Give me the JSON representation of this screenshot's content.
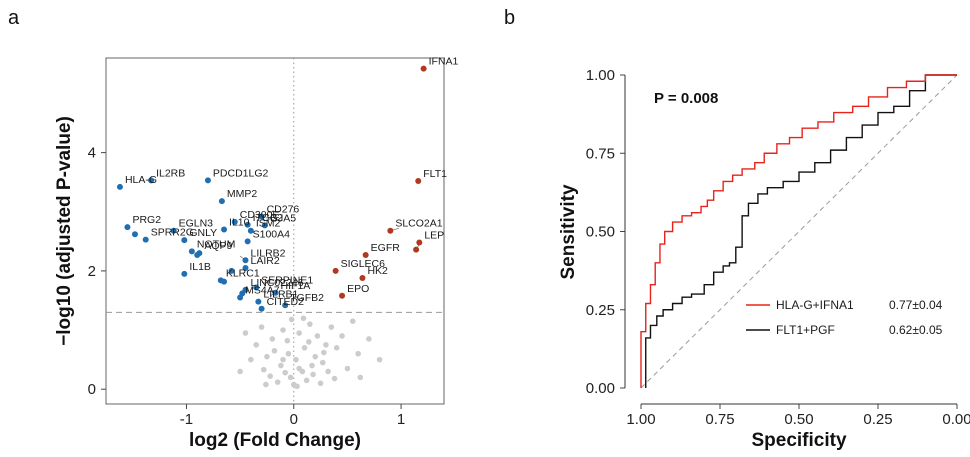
{
  "panels": {
    "a": "a",
    "b": "b"
  },
  "chart_data": [
    {
      "type": "scatter",
      "title": "",
      "xlabel": "log2 (Fold Change)",
      "ylabel": "−log10 (adjusted P-value)",
      "xlim": [
        -1.75,
        1.4
      ],
      "ylim": [
        -0.25,
        5.6
      ],
      "xticks": [
        -1,
        0,
        1
      ],
      "yticks": [
        0,
        2,
        4
      ],
      "threshold_y": 1.3,
      "colors": {
        "down": "#1f6fb2",
        "up": "#b0391f",
        "ns": "#cccccc"
      },
      "points": [
        {
          "x": 1.21,
          "y": 5.42,
          "label": "IFNA1",
          "group": "up"
        },
        {
          "x": 1.16,
          "y": 3.52,
          "label": "FLT1",
          "group": "up"
        },
        {
          "x": 0.9,
          "y": 2.68,
          "label": "SLCO2A1",
          "group": "up"
        },
        {
          "x": 1.17,
          "y": 2.48,
          "label": "LEP",
          "group": "up"
        },
        {
          "x": 0.67,
          "y": 2.27,
          "label": "EGFR",
          "group": "up"
        },
        {
          "x": 0.39,
          "y": 2.0,
          "label": "SIGLEC6",
          "group": "up"
        },
        {
          "x": 0.64,
          "y": 1.88,
          "label": "HK2",
          "group": "up"
        },
        {
          "x": 0.45,
          "y": 1.58,
          "label": "EPO",
          "group": "up"
        },
        {
          "x": 1.14,
          "y": 2.36,
          "label": "",
          "group": "up"
        },
        {
          "x": -1.62,
          "y": 3.42,
          "label": "HLA-G",
          "group": "down"
        },
        {
          "x": -1.33,
          "y": 3.53,
          "label": "IL2RB",
          "group": "down"
        },
        {
          "x": -0.8,
          "y": 3.53,
          "label": "PDCD1LG2",
          "group": "down"
        },
        {
          "x": -0.67,
          "y": 3.18,
          "label": "MMP2",
          "group": "down"
        },
        {
          "x": -0.3,
          "y": 2.92,
          "label": "CD276",
          "group": "down"
        },
        {
          "x": -0.27,
          "y": 2.77,
          "label": "GJA5",
          "group": "down"
        },
        {
          "x": -0.43,
          "y": 2.78,
          "label": "ITGB2",
          "group": "down"
        },
        {
          "x": -0.55,
          "y": 2.83,
          "label": "CD300E",
          "group": "down"
        },
        {
          "x": -0.65,
          "y": 2.7,
          "label": "IL10",
          "group": "down"
        },
        {
          "x": -0.4,
          "y": 2.68,
          "label": "ISM2",
          "group": "down"
        },
        {
          "x": -1.55,
          "y": 2.74,
          "label": "PRG2",
          "group": "down"
        },
        {
          "x": -1.48,
          "y": 2.62,
          "label": "",
          "group": "down"
        },
        {
          "x": -1.12,
          "y": 2.68,
          "label": "EGLN3",
          "group": "down"
        },
        {
          "x": -1.38,
          "y": 2.53,
          "label": "SPRR2G",
          "group": "down"
        },
        {
          "x": -1.02,
          "y": 2.52,
          "label": "GNLY",
          "group": "down"
        },
        {
          "x": -0.43,
          "y": 2.5,
          "label": "S100A4",
          "group": "down"
        },
        {
          "x": -0.95,
          "y": 2.33,
          "label": "NOTUM",
          "group": "down"
        },
        {
          "x": -0.88,
          "y": 2.3,
          "label": "AQP9",
          "group": "down"
        },
        {
          "x": -0.9,
          "y": 2.27,
          "label": "",
          "group": "down"
        },
        {
          "x": -0.45,
          "y": 2.18,
          "label": "LILRB2",
          "group": "down"
        },
        {
          "x": -0.45,
          "y": 2.05,
          "label": "LAIR2",
          "group": "down"
        },
        {
          "x": -0.58,
          "y": 2.0,
          "label": "",
          "group": "down"
        },
        {
          "x": -1.02,
          "y": 1.95,
          "label": "IL1B",
          "group": "down"
        },
        {
          "x": -0.68,
          "y": 1.84,
          "label": "KLRC1",
          "group": "down"
        },
        {
          "x": -0.65,
          "y": 1.82,
          "label": "",
          "group": "down"
        },
        {
          "x": -0.35,
          "y": 1.72,
          "label": "SERPINE1",
          "group": "down"
        },
        {
          "x": -0.45,
          "y": 1.68,
          "label": "LINC02246",
          "group": "down"
        },
        {
          "x": -0.48,
          "y": 1.62,
          "label": "",
          "group": "down"
        },
        {
          "x": -0.5,
          "y": 1.55,
          "label": "MS4A7",
          "group": "down"
        },
        {
          "x": -0.17,
          "y": 1.63,
          "label": "HIF1A",
          "group": "down"
        },
        {
          "x": -0.33,
          "y": 1.48,
          "label": "LILRB1",
          "group": "down"
        },
        {
          "x": -0.3,
          "y": 1.36,
          "label": "CITED2",
          "group": "down"
        },
        {
          "x": -0.08,
          "y": 1.42,
          "label": "TGFB2",
          "group": "down"
        }
      ],
      "ns_points": [
        [
          0.05,
          0.95
        ],
        [
          0.15,
          1.1
        ],
        [
          0.22,
          0.9
        ],
        [
          0.3,
          0.75
        ],
        [
          0.1,
          0.7
        ],
        [
          -0.1,
          1.0
        ],
        [
          -0.2,
          0.85
        ],
        [
          -0.05,
          0.6
        ],
        [
          0.02,
          0.5
        ],
        [
          -0.12,
          0.4
        ],
        [
          0.08,
          0.3
        ],
        [
          -0.03,
          0.2
        ],
        [
          0.18,
          0.25
        ],
        [
          -0.25,
          0.55
        ],
        [
          0.27,
          0.45
        ],
        [
          0.35,
          1.05
        ],
        [
          0.4,
          0.7
        ],
        [
          0.45,
          0.9
        ],
        [
          0.55,
          1.15
        ],
        [
          0.6,
          0.6
        ],
        [
          -0.3,
          1.05
        ],
        [
          -0.35,
          0.75
        ],
        [
          -0.4,
          0.5
        ],
        [
          0.12,
          0.15
        ],
        [
          -0.15,
          0.12
        ],
        [
          0.0,
          0.08
        ],
        [
          0.05,
          0.35
        ],
        [
          -0.08,
          0.28
        ],
        [
          0.25,
          0.1
        ],
        [
          -0.22,
          0.22
        ],
        [
          0.32,
          0.3
        ],
        [
          -0.45,
          0.95
        ],
        [
          0.2,
          0.55
        ],
        [
          0.7,
          0.85
        ],
        [
          0.5,
          0.35
        ],
        [
          -0.18,
          0.65
        ],
        [
          0.38,
          0.18
        ],
        [
          -0.28,
          0.33
        ],
        [
          0.14,
          0.8
        ],
        [
          -0.06,
          0.82
        ],
        [
          0.09,
          1.2
        ],
        [
          -0.02,
          1.18
        ],
        [
          0.28,
          0.62
        ],
        [
          0.62,
          0.2
        ],
        [
          -0.5,
          0.3
        ],
        [
          0.8,
          0.5
        ],
        [
          0.03,
          0.05
        ],
        [
          -0.1,
          0.5
        ],
        [
          0.17,
          0.4
        ],
        [
          -0.26,
          0.08
        ]
      ],
      "leaders": [
        [
          0.9,
          2.68,
          0.98,
          2.72
        ],
        [
          1.14,
          2.36,
          1.18,
          2.48
        ],
        [
          -0.45,
          2.18,
          -0.5,
          2.25
        ],
        [
          -0.17,
          1.63,
          -0.22,
          1.58
        ]
      ]
    },
    {
      "type": "line",
      "title": "",
      "xlabel": "Specificity",
      "ylabel": "Sensitivity",
      "xlim": [
        1.0,
        0.0
      ],
      "ylim": [
        0.0,
        1.0
      ],
      "xticks": [
        "1.00",
        "0.75",
        "0.50",
        "0.25",
        "0.00"
      ],
      "yticks": [
        "0.00",
        "0.25",
        "0.50",
        "0.75",
        "1.00"
      ],
      "annotation": "P = 0.008",
      "series": [
        {
          "name": "HLA-G+IFNA1",
          "auc": "0.77±0.04",
          "color": "#e8231c",
          "points": [
            [
              1.0,
              0.0
            ],
            [
              1.0,
              0.18
            ],
            [
              0.985,
              0.18
            ],
            [
              0.985,
              0.27
            ],
            [
              0.97,
              0.27
            ],
            [
              0.97,
              0.33
            ],
            [
              0.955,
              0.33
            ],
            [
              0.955,
              0.4
            ],
            [
              0.94,
              0.4
            ],
            [
              0.94,
              0.46
            ],
            [
              0.925,
              0.46
            ],
            [
              0.925,
              0.5
            ],
            [
              0.9,
              0.5
            ],
            [
              0.9,
              0.53
            ],
            [
              0.87,
              0.53
            ],
            [
              0.87,
              0.55
            ],
            [
              0.84,
              0.55
            ],
            [
              0.84,
              0.56
            ],
            [
              0.81,
              0.56
            ],
            [
              0.81,
              0.58
            ],
            [
              0.79,
              0.58
            ],
            [
              0.79,
              0.6
            ],
            [
              0.77,
              0.6
            ],
            [
              0.77,
              0.63
            ],
            [
              0.74,
              0.63
            ],
            [
              0.74,
              0.66
            ],
            [
              0.71,
              0.66
            ],
            [
              0.71,
              0.68
            ],
            [
              0.68,
              0.68
            ],
            [
              0.68,
              0.7
            ],
            [
              0.64,
              0.7
            ],
            [
              0.64,
              0.72
            ],
            [
              0.61,
              0.72
            ],
            [
              0.61,
              0.75
            ],
            [
              0.57,
              0.75
            ],
            [
              0.57,
              0.78
            ],
            [
              0.53,
              0.78
            ],
            [
              0.53,
              0.8
            ],
            [
              0.49,
              0.8
            ],
            [
              0.49,
              0.83
            ],
            [
              0.44,
              0.83
            ],
            [
              0.44,
              0.85
            ],
            [
              0.39,
              0.85
            ],
            [
              0.39,
              0.88
            ],
            [
              0.33,
              0.88
            ],
            [
              0.33,
              0.9
            ],
            [
              0.28,
              0.9
            ],
            [
              0.28,
              0.93
            ],
            [
              0.22,
              0.93
            ],
            [
              0.22,
              0.96
            ],
            [
              0.16,
              0.96
            ],
            [
              0.16,
              0.98
            ],
            [
              0.1,
              0.98
            ],
            [
              0.1,
              1.0
            ],
            [
              0.0,
              1.0
            ]
          ]
        },
        {
          "name": "FLT1+PGF",
          "auc": "0.62±0.05",
          "color": "#111111",
          "points": [
            [
              0.985,
              0.0
            ],
            [
              0.985,
              0.16
            ],
            [
              0.97,
              0.16
            ],
            [
              0.97,
              0.2
            ],
            [
              0.95,
              0.2
            ],
            [
              0.95,
              0.23
            ],
            [
              0.93,
              0.23
            ],
            [
              0.93,
              0.25
            ],
            [
              0.9,
              0.25
            ],
            [
              0.9,
              0.27
            ],
            [
              0.87,
              0.27
            ],
            [
              0.87,
              0.29
            ],
            [
              0.84,
              0.29
            ],
            [
              0.84,
              0.3
            ],
            [
              0.8,
              0.3
            ],
            [
              0.8,
              0.33
            ],
            [
              0.77,
              0.33
            ],
            [
              0.77,
              0.37
            ],
            [
              0.74,
              0.37
            ],
            [
              0.74,
              0.39
            ],
            [
              0.72,
              0.39
            ],
            [
              0.72,
              0.4
            ],
            [
              0.7,
              0.4
            ],
            [
              0.7,
              0.45
            ],
            [
              0.68,
              0.45
            ],
            [
              0.68,
              0.55
            ],
            [
              0.66,
              0.55
            ],
            [
              0.66,
              0.59
            ],
            [
              0.63,
              0.59
            ],
            [
              0.63,
              0.62
            ],
            [
              0.6,
              0.62
            ],
            [
              0.6,
              0.64
            ],
            [
              0.55,
              0.64
            ],
            [
              0.55,
              0.66
            ],
            [
              0.5,
              0.66
            ],
            [
              0.5,
              0.69
            ],
            [
              0.45,
              0.69
            ],
            [
              0.45,
              0.72
            ],
            [
              0.4,
              0.72
            ],
            [
              0.4,
              0.76
            ],
            [
              0.35,
              0.76
            ],
            [
              0.35,
              0.8
            ],
            [
              0.3,
              0.8
            ],
            [
              0.3,
              0.84
            ],
            [
              0.25,
              0.84
            ],
            [
              0.25,
              0.88
            ],
            [
              0.2,
              0.88
            ],
            [
              0.2,
              0.9
            ],
            [
              0.15,
              0.9
            ],
            [
              0.15,
              0.95
            ],
            [
              0.1,
              0.95
            ],
            [
              0.1,
              1.0
            ],
            [
              0.0,
              1.0
            ]
          ]
        }
      ]
    }
  ]
}
